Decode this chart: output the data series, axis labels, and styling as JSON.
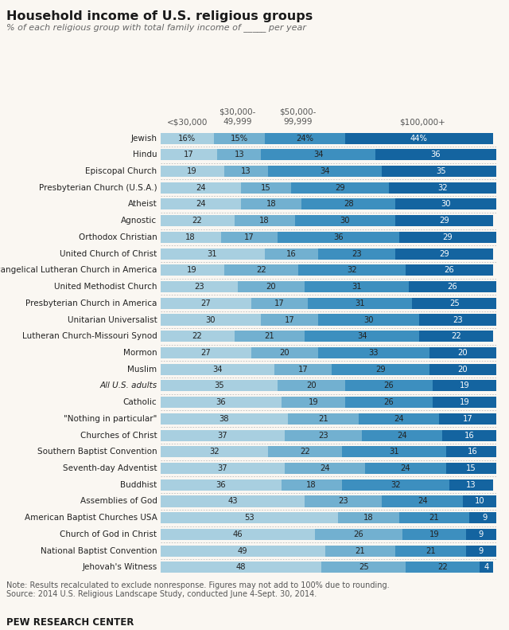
{
  "title": "Household income of U.S. religious groups",
  "subtitle": "% of each religious group with total family income of _____ per year",
  "col_labels": [
    "<$30,000",
    "$30,000-\n49,999",
    "$50,000-\n99,999",
    "$100,000+"
  ],
  "groups": [
    {
      "name": "Jewish",
      "vals": [
        16,
        15,
        24,
        44
      ],
      "italic": false
    },
    {
      "name": "Hindu",
      "vals": [
        17,
        13,
        34,
        36
      ],
      "italic": false
    },
    {
      "name": "Episcopal Church",
      "vals": [
        19,
        13,
        34,
        35
      ],
      "italic": false
    },
    {
      "name": "Presbyterian Church (U.S.A.)",
      "vals": [
        24,
        15,
        29,
        32
      ],
      "italic": false
    },
    {
      "name": "Atheist",
      "vals": [
        24,
        18,
        28,
        30
      ],
      "italic": false
    },
    {
      "name": "Agnostic",
      "vals": [
        22,
        18,
        30,
        29
      ],
      "italic": false
    },
    {
      "name": "Orthodox Christian",
      "vals": [
        18,
        17,
        36,
        29
      ],
      "italic": false
    },
    {
      "name": "United Church of Christ",
      "vals": [
        31,
        16,
        23,
        29
      ],
      "italic": false
    },
    {
      "name": "Evangelical Lutheran Church in America",
      "vals": [
        19,
        22,
        32,
        26
      ],
      "italic": false
    },
    {
      "name": "United Methodist Church",
      "vals": [
        23,
        20,
        31,
        26
      ],
      "italic": false
    },
    {
      "name": "Presbyterian Church in America",
      "vals": [
        27,
        17,
        31,
        25
      ],
      "italic": false
    },
    {
      "name": "Unitarian Universalist",
      "vals": [
        30,
        17,
        30,
        23
      ],
      "italic": false
    },
    {
      "name": "Lutheran Church-Missouri Synod",
      "vals": [
        22,
        21,
        34,
        22
      ],
      "italic": false
    },
    {
      "name": "Mormon",
      "vals": [
        27,
        20,
        33,
        20
      ],
      "italic": false
    },
    {
      "name": "Muslim",
      "vals": [
        34,
        17,
        29,
        20
      ],
      "italic": false
    },
    {
      "name": "All U.S. adults",
      "vals": [
        35,
        20,
        26,
        19
      ],
      "italic": true
    },
    {
      "name": "Catholic",
      "vals": [
        36,
        19,
        26,
        19
      ],
      "italic": false
    },
    {
      "name": "\"Nothing in particular\"",
      "vals": [
        38,
        21,
        24,
        17
      ],
      "italic": false
    },
    {
      "name": "Churches of Christ",
      "vals": [
        37,
        23,
        24,
        16
      ],
      "italic": false
    },
    {
      "name": "Southern Baptist Convention",
      "vals": [
        32,
        22,
        31,
        16
      ],
      "italic": false
    },
    {
      "name": "Seventh-day Adventist",
      "vals": [
        37,
        24,
        24,
        15
      ],
      "italic": false
    },
    {
      "name": "Buddhist",
      "vals": [
        36,
        18,
        32,
        13
      ],
      "italic": false
    },
    {
      "name": "Assemblies of God",
      "vals": [
        43,
        23,
        24,
        10
      ],
      "italic": false
    },
    {
      "name": "American Baptist Churches USA",
      "vals": [
        53,
        18,
        21,
        9
      ],
      "italic": false
    },
    {
      "name": "Church of God in Christ",
      "vals": [
        46,
        26,
        19,
        9
      ],
      "italic": false
    },
    {
      "name": "National Baptist Convention",
      "vals": [
        49,
        21,
        21,
        9
      ],
      "italic": false
    },
    {
      "name": "Jehovah's Witness",
      "vals": [
        48,
        25,
        22,
        4
      ],
      "italic": false
    }
  ],
  "colors": [
    "#a8cfe0",
    "#72b0d0",
    "#3d8fbf",
    "#1464a0"
  ],
  "note": "Note: Results recalculated to exclude nonresponse. Figures may not add to 100% due to rounding.",
  "source": "Source: 2014 U.S. Religious Landscape Study, conducted June 4-Sept. 30, 2014.",
  "footer": "PEW RESEARCH CENTER",
  "bg_color": "#faf7f2"
}
